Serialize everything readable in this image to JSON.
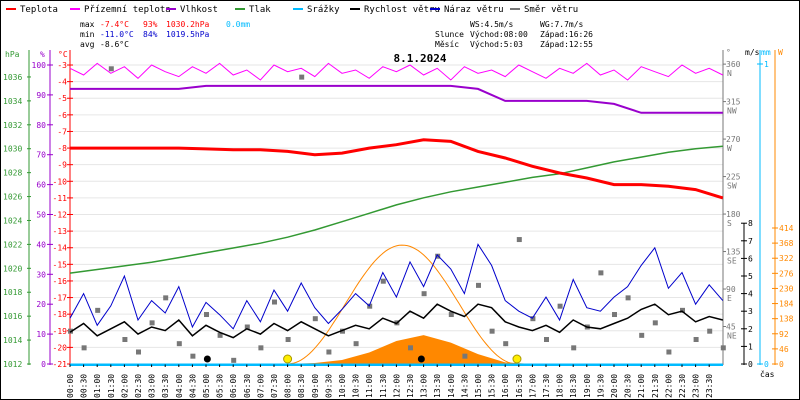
{
  "legend": [
    {
      "label": "Teplota",
      "color": "#ff0000"
    },
    {
      "label": "Přízemní teplota",
      "color": "#ff00ff"
    },
    {
      "label": "Vlhkost",
      "color": "#9900cc"
    },
    {
      "label": "Tlak",
      "color": "#339933"
    },
    {
      "label": "Srážky",
      "color": "#00bbff"
    },
    {
      "label": "Rychlost větru",
      "color": "#000000"
    },
    {
      "label": "Náraz větru",
      "color": "#0000cc"
    },
    {
      "label": "Směr větru",
      "color": "#777777"
    }
  ],
  "stats": {
    "max_label": "max",
    "max_temp": "-7.4°C",
    "max_hum": "93%",
    "max_press": "1030.2hPa",
    "max_rain": "0.0mm",
    "min_label": "min",
    "min_temp": "-11.0°C",
    "min_hum": "84%",
    "min_press": "1019.5hPa",
    "avg_label": "avg",
    "avg_temp": "-8.6°C",
    "ws": "WS:4.5m/s",
    "wg": "WG:7.7m/s",
    "sun_label": "Slunce",
    "sun_rise": "Východ:08:00",
    "sun_set": "Západ:16:26",
    "moon_label": "Měsíc",
    "moon_rise": "Východ:5:03",
    "moon_set": "Západ:12:55"
  },
  "chart_data": {
    "type": "line",
    "title": "8.1.2024",
    "xlabel": "čas",
    "x_ticks": [
      "00:00",
      "00:30",
      "01:00",
      "01:30",
      "02:00",
      "02:30",
      "03:00",
      "03:30",
      "04:00",
      "04:30",
      "05:00",
      "05:30",
      "06:00",
      "06:30",
      "07:00",
      "07:30",
      "08:00",
      "08:30",
      "09:00",
      "09:30",
      "10:00",
      "10:30",
      "11:00",
      "11:30",
      "12:00",
      "12:30",
      "13:00",
      "13:30",
      "14:00",
      "14:30",
      "15:00",
      "15:30",
      "16:00",
      "16:30",
      "17:00",
      "17:30",
      "18:00",
      "18:30",
      "19:00",
      "19:30",
      "20:00",
      "20:30",
      "21:00",
      "21:30",
      "22:00",
      "22:30",
      "23:00",
      "23:30"
    ],
    "axes": {
      "hpa": {
        "unit": "hPa",
        "range": [
          1012,
          1036
        ],
        "ticks": [
          1012,
          1014,
          1016,
          1018,
          1020,
          1022,
          1024,
          1026,
          1028,
          1030,
          1032,
          1034,
          1036
        ]
      },
      "hum": {
        "unit": "%",
        "range": [
          0,
          100
        ],
        "ticks": [
          0,
          10,
          20,
          30,
          40,
          50,
          60,
          70,
          80,
          90,
          100
        ]
      },
      "temp": {
        "unit": "°C",
        "range": [
          -21,
          -3
        ],
        "ticks": [
          -3,
          -4,
          -5,
          -6,
          -7,
          -8,
          -9,
          -10,
          -11,
          -12,
          -13,
          -14,
          -15,
          -16,
          -17,
          -18,
          -19,
          -20,
          -21
        ]
      },
      "dir": {
        "unit": "°",
        "range": [
          0,
          360
        ],
        "ticks": [
          {
            "v": 45,
            "d": "NE"
          },
          {
            "v": 90,
            "d": "E"
          },
          {
            "v": 135,
            "d": "SE"
          },
          {
            "v": 180,
            "d": "S"
          },
          {
            "v": 225,
            "d": "SW"
          },
          {
            "v": 270,
            "d": "W"
          },
          {
            "v": 315,
            "d": "NW"
          },
          {
            "v": 360,
            "d": "N"
          }
        ]
      },
      "wind": {
        "unit": "m/s",
        "range": [
          0,
          8
        ],
        "ticks": [
          0,
          1,
          2,
          3,
          4,
          5,
          6,
          7,
          8
        ]
      },
      "rain": {
        "unit": "mm",
        "range": [
          0,
          1
        ],
        "ticks": [
          0,
          1
        ]
      },
      "solar": {
        "unit": "W",
        "range": [
          0,
          414
        ],
        "ticks": [
          0,
          46,
          92,
          138,
          184,
          230,
          276,
          322,
          368,
          414
        ]
      }
    },
    "hourly_x": [
      0,
      1,
      2,
      3,
      4,
      5,
      6,
      7,
      8,
      9,
      10,
      11,
      12,
      13,
      14,
      15,
      16,
      17,
      18,
      19,
      20,
      21,
      22,
      23,
      24
    ],
    "series": {
      "temperature": [
        -8,
        -8,
        -8,
        -8,
        -8,
        -8.05,
        -8.1,
        -8.1,
        -8.2,
        -8.4,
        -8.3,
        -8.0,
        -7.8,
        -7.5,
        -7.6,
        -8.2,
        -8.6,
        -9.1,
        -9.5,
        -9.8,
        -10.2,
        -10.2,
        -10.3,
        -10.5,
        -11.0
      ],
      "pressure": [
        1019.6,
        1019.9,
        1020.2,
        1020.5,
        1020.9,
        1021.3,
        1021.7,
        1022.1,
        1022.6,
        1023.2,
        1023.9,
        1024.6,
        1025.3,
        1025.9,
        1026.4,
        1026.8,
        1027.2,
        1027.6,
        1027.9,
        1028.4,
        1028.9,
        1029.3,
        1029.7,
        1030.0,
        1030.2
      ],
      "humidity": [
        92,
        92,
        92,
        92,
        92,
        93,
        93,
        93,
        93,
        93,
        93,
        93,
        93,
        93,
        93,
        92,
        88,
        88,
        88,
        88,
        87,
        84,
        84,
        84,
        84
      ],
      "rain": [
        0,
        0,
        0,
        0,
        0,
        0,
        0,
        0,
        0,
        0,
        0,
        0,
        0,
        0,
        0,
        0,
        0,
        0,
        0,
        0,
        0,
        0,
        0,
        0,
        0
      ],
      "solar": [
        0,
        0,
        0,
        0,
        0,
        0,
        0,
        0,
        0,
        3,
        12,
        35,
        70,
        88,
        65,
        30,
        5,
        0,
        0,
        0,
        0,
        0,
        0,
        0,
        0
      ],
      "feels_like_halfhourly": [
        -3.2,
        -3.6,
        -2.9,
        -3.5,
        -3.1,
        -3.8,
        -3.0,
        -3.4,
        -3.7,
        -3.1,
        -3.5,
        -2.9,
        -3.6,
        -3.3,
        -3.9,
        -3.0,
        -3.4,
        -3.2,
        -3.7,
        -2.9,
        -3.5,
        -3.3,
        -3.8,
        -3.1,
        -3.4,
        -3.0,
        -3.6,
        -3.2,
        -3.9,
        -3.1,
        -3.5,
        -3.3,
        -3.7,
        -3.0,
        -3.4,
        -3.8,
        -3.2,
        -3.5,
        -2.9,
        -3.6,
        -3.3,
        -3.9,
        -3.1,
        -3.4,
        -3.7,
        -3.0,
        -3.5,
        -3.2,
        -3.6
      ],
      "wind_speed_halfhourly": [
        1.8,
        2.3,
        1.6,
        2.0,
        2.4,
        1.7,
        2.1,
        1.9,
        2.5,
        1.6,
        2.2,
        1.8,
        1.5,
        2.0,
        1.7,
        2.3,
        1.9,
        2.4,
        2.0,
        1.6,
        1.9,
        2.2,
        2.0,
        2.6,
        2.3,
        3.0,
        2.6,
        3.4,
        3.0,
        2.7,
        3.4,
        3.2,
        2.4,
        2.1,
        1.9,
        2.2,
        1.8,
        2.5,
        2.1,
        2.0,
        2.3,
        2.6,
        3.1,
        3.4,
        2.8,
        3.0,
        2.4,
        2.7,
        2.5
      ],
      "wind_gust_halfhourly": [
        2.6,
        4.0,
        2.2,
        3.3,
        5.0,
        2.5,
        3.6,
        2.9,
        4.4,
        2.1,
        3.5,
        2.8,
        2.0,
        3.6,
        2.4,
        4.2,
        3.0,
        4.6,
        3.2,
        2.3,
        3.1,
        4.0,
        3.3,
        5.2,
        3.8,
        5.8,
        4.4,
        6.2,
        5.4,
        4.0,
        6.8,
        5.6,
        3.6,
        3.0,
        2.6,
        3.8,
        2.5,
        4.8,
        3.2,
        3.0,
        3.8,
        4.4,
        5.6,
        6.6,
        4.3,
        5.2,
        3.4,
        4.5,
        3.6
      ],
      "wind_dir_halfhourly": [
        40,
        20,
        65,
        355,
        30,
        15,
        50,
        80,
        25,
        10,
        60,
        35,
        5,
        45,
        20,
        75,
        30,
        345,
        55,
        15,
        40,
        25,
        70,
        100,
        50,
        20,
        85,
        130,
        60,
        10,
        95,
        40,
        25,
        150,
        55,
        30,
        70,
        20,
        45,
        110,
        60,
        80,
        35,
        50,
        15,
        65,
        30,
        40,
        20
      ]
    },
    "clear_sky_peak_w": 362,
    "sunrise_h": 8.0,
    "sunset_h": 16.433,
    "moonrise_h": 5.05,
    "moonset_h": 12.917
  }
}
